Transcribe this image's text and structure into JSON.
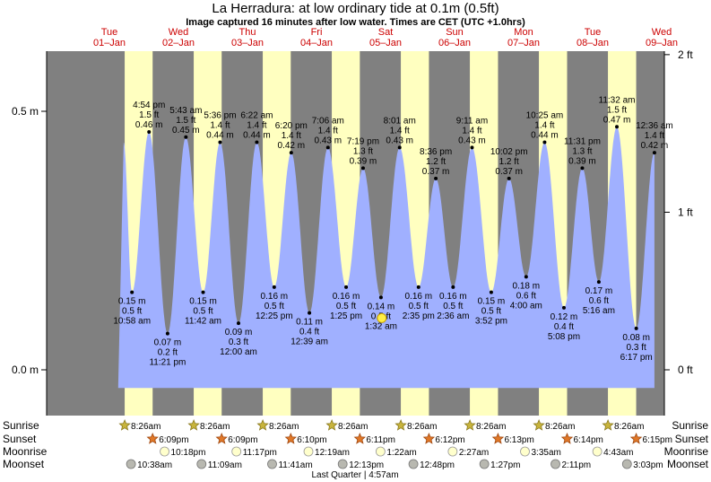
{
  "title": "La Herradura: at low  ordinary tide at 0.1m (0.5ft)",
  "subtitle": "Image captured 16 minutes after low water. Times are CET (UTC +1.0hrs)",
  "colors": {
    "night": "#808080",
    "day": "#ffffc0",
    "water": "#a0b0ff",
    "day_label": "#cc0000",
    "axis": "#000000"
  },
  "chart_data": {
    "type": "area",
    "title": "La Herradura: at low  ordinary tide at 0.1m (0.5ft)",
    "y_left_ticks": [
      {
        "value": 0.0,
        "label": "0.0 m"
      },
      {
        "value": 0.5,
        "label": "0.5 m"
      }
    ],
    "y_right_ticks": [
      {
        "value": 0.0,
        "label": "0 ft"
      },
      {
        "value": 0.3048,
        "label": "1 ft"
      },
      {
        "value": 0.6096,
        "label": "2 ft"
      }
    ],
    "ylim_m": [
      -0.09,
      0.62
    ],
    "x_range_days": [
      -0.5,
      8.5
    ],
    "days": [
      {
        "name": "Tue",
        "date": "01–Jan"
      },
      {
        "name": "Wed",
        "date": "02–Jan"
      },
      {
        "name": "Thu",
        "date": "03–Jan"
      },
      {
        "name": "Fri",
        "date": "04–Jan"
      },
      {
        "name": "Sat",
        "date": "05–Jan"
      },
      {
        "name": "Sun",
        "date": "06–Jan"
      },
      {
        "name": "Mon",
        "date": "07–Jan"
      },
      {
        "name": "Tue",
        "date": "08–Jan"
      },
      {
        "name": "Wed",
        "date": "09–Jan"
      }
    ],
    "daylight": [
      {
        "sunrise": "8:26am",
        "sunset": "6:09pm"
      },
      {
        "sunrise": "8:26am",
        "sunset": "6:09pm"
      },
      {
        "sunrise": "8:26am",
        "sunset": "6:10pm"
      },
      {
        "sunrise": "8:26am",
        "sunset": "6:11pm"
      },
      {
        "sunrise": "8:26am",
        "sunset": "6:12pm"
      },
      {
        "sunrise": "8:26am",
        "sunset": "6:13pm"
      },
      {
        "sunrise": "8:26am",
        "sunset": "6:14pm"
      },
      {
        "sunrise": "8:26am",
        "sunset": "6:15pm"
      }
    ],
    "tides": [
      {
        "type": "high",
        "day": 0,
        "time": "4:54 pm",
        "ft": "1.5 ft",
        "m": "0.46 m",
        "value": 0.46
      },
      {
        "type": "low",
        "day": 0,
        "time": "10:58 am",
        "ft": "0.5 ft",
        "m": "0.15 m",
        "value": 0.15
      },
      {
        "type": "low",
        "day": 0,
        "time": "11:21 pm",
        "ft": "0.2 ft",
        "m": "0.07 m",
        "value": 0.07
      },
      {
        "type": "high",
        "day": 1,
        "time": "5:43 am",
        "ft": "1.5 ft",
        "m": "0.45 m",
        "value": 0.45
      },
      {
        "type": "low",
        "day": 1,
        "time": "11:42 am",
        "ft": "0.5 ft",
        "m": "0.15 m",
        "value": 0.15
      },
      {
        "type": "high",
        "day": 1,
        "time": "5:36 pm",
        "ft": "1.4 ft",
        "m": "0.44 m",
        "value": 0.44
      },
      {
        "type": "low",
        "day": 2,
        "time": "12:00 am",
        "ft": "0.3 ft",
        "m": "0.09 m",
        "value": 0.09
      },
      {
        "type": "high",
        "day": 2,
        "time": "6:22 am",
        "ft": "1.4 ft",
        "m": "0.44 m",
        "value": 0.44
      },
      {
        "type": "low",
        "day": 2,
        "time": "12:25 pm",
        "ft": "0.5 ft",
        "m": "0.16 m",
        "value": 0.16
      },
      {
        "type": "high",
        "day": 2,
        "time": "6:20 pm",
        "ft": "1.4 ft",
        "m": "0.42 m",
        "value": 0.42
      },
      {
        "type": "low",
        "day": 3,
        "time": "12:39 am",
        "ft": "0.4 ft",
        "m": "0.11 m",
        "value": 0.11
      },
      {
        "type": "high",
        "day": 3,
        "time": "7:06 am",
        "ft": "1.4 ft",
        "m": "0.43 m",
        "value": 0.43
      },
      {
        "type": "low",
        "day": 3,
        "time": "1:25 pm",
        "ft": "0.5 ft",
        "m": "0.16 m",
        "value": 0.16
      },
      {
        "type": "high",
        "day": 3,
        "time": "7:19 pm",
        "ft": "1.3 ft",
        "m": "0.39 m",
        "value": 0.39
      },
      {
        "type": "low",
        "day": 4,
        "time": "1:32 am",
        "ft": "0.5 ft",
        "m": "0.14 m",
        "value": 0.14
      },
      {
        "type": "high",
        "day": 4,
        "time": "8:01 am",
        "ft": "1.4 ft",
        "m": "0.43 m",
        "value": 0.43
      },
      {
        "type": "low",
        "day": 4,
        "time": "2:35 pm",
        "ft": "0.5 ft",
        "m": "0.16 m",
        "value": 0.16
      },
      {
        "type": "high",
        "day": 4,
        "time": "8:36 pm",
        "ft": "1.2 ft",
        "m": "0.37 m",
        "value": 0.37
      },
      {
        "type": "low",
        "day": 5,
        "time": "2:36 am",
        "ft": "0.5 ft",
        "m": "0.16 m",
        "value": 0.16
      },
      {
        "type": "high",
        "day": 5,
        "time": "9:11 am",
        "ft": "1.4 ft",
        "m": "0.43 m",
        "value": 0.43
      },
      {
        "type": "low",
        "day": 5,
        "time": "3:52 pm",
        "ft": "0.5 ft",
        "m": "0.15 m",
        "value": 0.15
      },
      {
        "type": "high",
        "day": 5,
        "time": "10:02 pm",
        "ft": "1.2 ft",
        "m": "0.37 m",
        "value": 0.37
      },
      {
        "type": "low",
        "day": 6,
        "time": "4:00 am",
        "ft": "0.6 ft",
        "m": "0.18 m",
        "value": 0.18
      },
      {
        "type": "high",
        "day": 6,
        "time": "10:25 am",
        "ft": "1.4 ft",
        "m": "0.44 m",
        "value": 0.44
      },
      {
        "type": "low",
        "day": 6,
        "time": "5:08 pm",
        "ft": "0.4 ft",
        "m": "0.12 m",
        "value": 0.12
      },
      {
        "type": "high",
        "day": 6,
        "time": "11:31 pm",
        "ft": "1.3 ft",
        "m": "0.39 m",
        "value": 0.39
      },
      {
        "type": "low",
        "day": 7,
        "time": "5:16 am",
        "ft": "0.6 ft",
        "m": "0.17 m",
        "value": 0.17
      },
      {
        "type": "high",
        "day": 7,
        "time": "11:32 am",
        "ft": "1.5 ft",
        "m": "0.47 m",
        "value": 0.47
      },
      {
        "type": "low",
        "day": 7,
        "time": "6:17 pm",
        "ft": "0.3 ft",
        "m": "0.08 m",
        "value": 0.08
      },
      {
        "type": "high",
        "day": 8,
        "time": "12:36 am",
        "ft": "1.4 ft",
        "m": "0.42 m",
        "value": 0.42
      }
    ],
    "rows": {
      "sunrise_label": "Sunrise",
      "sunset_label": "Sunset",
      "moonrise_label": "Moonrise",
      "moonset_label": "Moonset"
    },
    "moonrise": [
      {
        "day": 0,
        "time": "10:18pm"
      },
      {
        "day": 1,
        "time": "11:17pm"
      },
      {
        "day": 3,
        "time": "12:19am"
      },
      {
        "day": 4,
        "time": "1:22am"
      },
      {
        "day": 5,
        "time": "2:27am"
      },
      {
        "day": 6,
        "time": "3:35am"
      },
      {
        "day": 7,
        "time": "4:43am"
      }
    ],
    "moonset": [
      {
        "day": 0,
        "time": "10:38am"
      },
      {
        "day": 1,
        "time": "11:09am"
      },
      {
        "day": 2,
        "time": "11:41am"
      },
      {
        "day": 3,
        "time": "12:13pm"
      },
      {
        "day": 4,
        "time": "12:48pm"
      },
      {
        "day": 5,
        "time": "1:27pm"
      },
      {
        "day": 6,
        "time": "2:11pm"
      },
      {
        "day": 7,
        "time": "3:03pm"
      }
    ],
    "moon_phase": "Last Quarter | 4:57am"
  }
}
